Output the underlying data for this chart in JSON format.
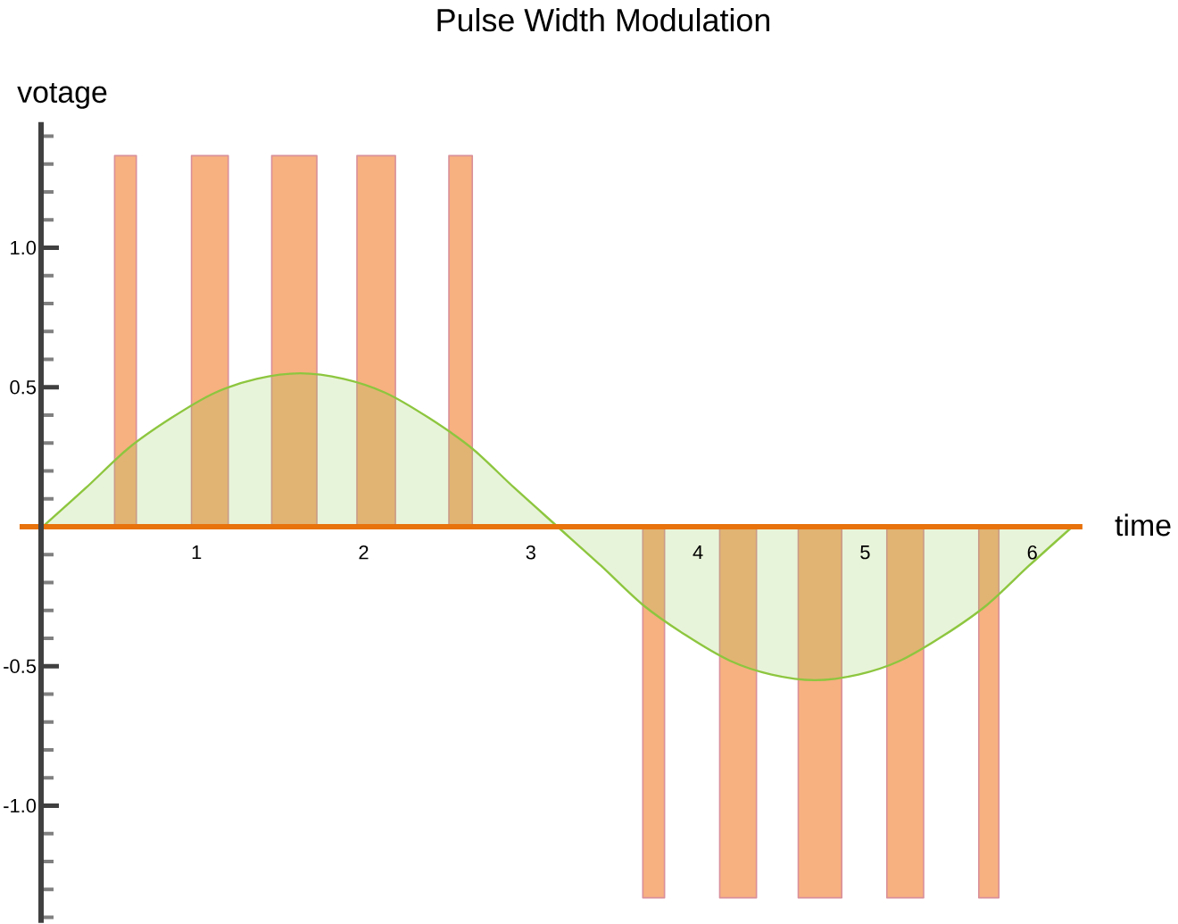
{
  "chart_data": {
    "type": "area",
    "title": "Pulse Width Modulation",
    "xlabel": "time",
    "ylabel": "votage",
    "xlim": [
      0.07,
      6.3
    ],
    "ylim": [
      -1.42,
      1.45
    ],
    "xticks": [
      1,
      2,
      3,
      4,
      5,
      6
    ],
    "yticks": [
      {
        "value": -1,
        "label": "-1.0"
      },
      -0.5,
      0.5,
      {
        "value": 1,
        "label": "1.0"
      }
    ],
    "series": [
      {
        "color": "#f7b080",
        "x": [
          0.51,
          0.51,
          0.64,
          0.64,
          0.97,
          0.97,
          1.19,
          1.19,
          1.45,
          1.45,
          1.72,
          1.72,
          1.96,
          1.96,
          2.19,
          2.19,
          2.51,
          2.51,
          2.65,
          2.65,
          3.67,
          3.67,
          3.8,
          3.8,
          4.13,
          4.13,
          4.35,
          4.35,
          4.6,
          4.6,
          4.86,
          4.86,
          5.13,
          5.13,
          5.35,
          5.35,
          5.68,
          5.68,
          5.8,
          5.8
        ],
        "values": [
          0,
          1.33,
          1.33,
          0,
          0,
          1.33,
          1.33,
          0,
          0,
          1.33,
          1.33,
          0,
          0,
          1.33,
          1.33,
          0,
          0,
          1.33,
          1.33,
          0,
          0,
          -1.33,
          -1.33,
          0,
          0,
          -1.33,
          -1.33,
          0,
          0,
          -1.33,
          -1.33,
          0,
          0,
          -1.33,
          -1.33,
          0,
          0,
          -1.33,
          -1.33,
          0
        ]
      },
      {
        "color": "#8dc63f",
        "x": [
          0.08,
          0.34,
          0.59,
          0.85,
          1.11,
          1.36,
          1.62,
          1.88,
          2.13,
          2.39,
          2.65,
          2.9,
          3.16,
          3.42,
          3.67,
          3.93,
          4.19,
          4.44,
          4.7,
          4.96,
          5.21,
          5.47,
          5.73,
          5.98,
          6.24
        ],
        "values": [
          0,
          0.14,
          0.28,
          0.39,
          0.48,
          0.53,
          0.55,
          0.53,
          0.48,
          0.39,
          0.28,
          0.14,
          0,
          -0.14,
          -0.28,
          -0.39,
          -0.48,
          -0.53,
          -0.55,
          -0.53,
          -0.48,
          -0.39,
          -0.28,
          -0.14,
          0
        ]
      }
    ]
  }
}
